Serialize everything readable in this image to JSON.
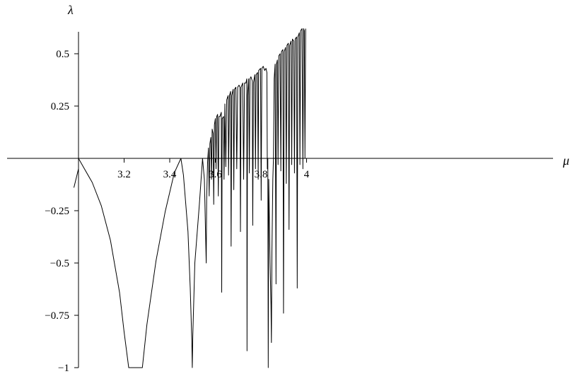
{
  "chart_data": {
    "type": "line",
    "title": "",
    "xlabel": "μ",
    "ylabel": "λ",
    "xlim": [
      2.97,
      4.02
    ],
    "ylim": [
      -1.0,
      0.62
    ],
    "grid": false,
    "legend": "none",
    "x_ticks": [
      {
        "value": 3.2,
        "label": "3.2"
      },
      {
        "value": 3.4,
        "label": "3.4"
      },
      {
        "value": 3.6,
        "label": "3.6"
      },
      {
        "value": 3.8,
        "label": "3.8"
      },
      {
        "value": 4.0,
        "label": "4"
      }
    ],
    "y_ticks": [
      {
        "value": 0.5,
        "label": "0.5"
      },
      {
        "value": 0.25,
        "label": "0.25"
      },
      {
        "value": -0.25,
        "label": "−0.25"
      },
      {
        "value": -0.5,
        "label": "−0.5"
      },
      {
        "value": -0.75,
        "label": "−0.75"
      },
      {
        "value": -1.0,
        "label": "−1"
      }
    ],
    "series": [
      {
        "color": "#000000",
        "points": [
          [
            2.98,
            -0.14
          ],
          [
            3.0,
            -0.05
          ],
          [
            3.0,
            -0.0
          ],
          [
            3.02,
            -0.039
          ],
          [
            3.06,
            -0.115
          ],
          [
            3.1,
            -0.227
          ],
          [
            3.14,
            -0.392
          ],
          [
            3.18,
            -0.642
          ],
          [
            3.2,
            -0.83
          ],
          [
            3.22,
            -1.0
          ],
          [
            3.28,
            -1.0
          ],
          [
            3.3,
            -0.795
          ],
          [
            3.34,
            -0.49
          ],
          [
            3.38,
            -0.256
          ],
          [
            3.42,
            -0.07
          ],
          [
            3.449,
            0.0
          ],
          [
            3.46,
            -0.08
          ],
          [
            3.48,
            -0.35
          ],
          [
            3.49,
            -0.62
          ],
          [
            3.497,
            -0.88
          ],
          [
            3.499,
            -1.0
          ],
          [
            3.501,
            -0.85
          ],
          [
            3.51,
            -0.5
          ],
          [
            3.53,
            -0.22
          ],
          [
            3.544,
            0.0
          ],
          [
            3.552,
            -0.1
          ],
          [
            3.56,
            -0.5
          ],
          [
            3.562,
            -0.2
          ],
          [
            3.566,
            -0.02
          ],
          [
            3.57,
            0.05
          ],
          [
            3.573,
            -0.18
          ],
          [
            3.576,
            0.07
          ],
          [
            3.58,
            0.1
          ],
          [
            3.583,
            -0.1
          ],
          [
            3.586,
            0.14
          ],
          [
            3.59,
            0.12
          ],
          [
            3.593,
            -0.22
          ],
          [
            3.596,
            0.16
          ],
          [
            3.6,
            0.19
          ],
          [
            3.603,
            -0.05
          ],
          [
            3.606,
            0.2
          ],
          [
            3.61,
            0.21
          ],
          [
            3.613,
            -0.18
          ],
          [
            3.616,
            0.2
          ],
          [
            3.62,
            0.2
          ],
          [
            3.626,
            0.22
          ],
          [
            3.628,
            -0.64
          ],
          [
            3.63,
            0.19
          ],
          [
            3.636,
            0.2
          ],
          [
            3.638,
            -0.1
          ],
          [
            3.642,
            0.26
          ],
          [
            3.646,
            -0.04
          ],
          [
            3.65,
            0.28
          ],
          [
            3.656,
            0.3
          ],
          [
            3.658,
            -0.08
          ],
          [
            3.662,
            0.3
          ],
          [
            3.667,
            0.32
          ],
          [
            3.669,
            -0.42
          ],
          [
            3.672,
            0.3
          ],
          [
            3.678,
            0.33
          ],
          [
            3.681,
            -0.15
          ],
          [
            3.684,
            0.33
          ],
          [
            3.69,
            0.34
          ],
          [
            3.694,
            -0.05
          ],
          [
            3.698,
            0.34
          ],
          [
            3.704,
            0.35
          ],
          [
            3.708,
            0.34
          ],
          [
            3.71,
            -0.35
          ],
          [
            3.713,
            0.34
          ],
          [
            3.72,
            0.36
          ],
          [
            3.724,
            -0.1
          ],
          [
            3.728,
            0.36
          ],
          [
            3.734,
            0.36
          ],
          [
            3.738,
            0.38
          ],
          [
            3.739,
            -0.92
          ],
          [
            3.741,
            0.3
          ],
          [
            3.746,
            0.38
          ],
          [
            3.749,
            -0.07
          ],
          [
            3.752,
            0.38
          ],
          [
            3.756,
            0.39
          ],
          [
            3.762,
            0.37
          ],
          [
            3.764,
            -0.32
          ],
          [
            3.767,
            0.36
          ],
          [
            3.773,
            0.4
          ],
          [
            3.776,
            -0.05
          ],
          [
            3.779,
            0.4
          ],
          [
            3.785,
            0.41
          ],
          [
            3.788,
            -0.1
          ],
          [
            3.79,
            0.42
          ],
          [
            3.798,
            0.43
          ],
          [
            3.801,
            -0.2
          ],
          [
            3.804,
            0.43
          ],
          [
            3.81,
            0.44
          ],
          [
            3.816,
            0.42
          ],
          [
            3.822,
            0.43
          ],
          [
            3.826,
            0.41
          ],
          [
            3.828,
            -0.05
          ],
          [
            3.83,
            0.0
          ],
          [
            3.832,
            -1.0
          ],
          [
            3.834,
            -0.1
          ],
          [
            3.84,
            -0.5
          ],
          [
            3.844,
            -0.7
          ],
          [
            3.846,
            -0.88
          ],
          [
            3.848,
            -0.45
          ],
          [
            3.852,
            -0.1
          ],
          [
            3.855,
            0.0
          ],
          [
            3.858,
            0.38
          ],
          [
            3.862,
            0.45
          ],
          [
            3.866,
            -0.6
          ],
          [
            3.868,
            0.45
          ],
          [
            3.872,
            0.47
          ],
          [
            3.875,
            -0.03
          ],
          [
            3.878,
            0.49
          ],
          [
            3.884,
            0.5
          ],
          [
            3.887,
            -0.06
          ],
          [
            3.89,
            0.51
          ],
          [
            3.896,
            0.52
          ],
          [
            3.899,
            -0.74
          ],
          [
            3.902,
            0.51
          ],
          [
            3.908,
            0.53
          ],
          [
            3.911,
            -0.12
          ],
          [
            3.914,
            0.54
          ],
          [
            3.92,
            0.55
          ],
          [
            3.923,
            -0.34
          ],
          [
            3.926,
            0.54
          ],
          [
            3.932,
            0.56
          ],
          [
            3.935,
            -0.03
          ],
          [
            3.938,
            0.57
          ],
          [
            3.944,
            0.56
          ],
          [
            3.947,
            -0.07
          ],
          [
            3.95,
            0.57
          ],
          [
            3.956,
            0.58
          ],
          [
            3.959,
            -0.62
          ],
          [
            3.962,
            0.58
          ],
          [
            3.968,
            0.6
          ],
          [
            3.971,
            -0.03
          ],
          [
            3.974,
            0.61
          ],
          [
            3.98,
            0.62
          ],
          [
            3.984,
            -0.05
          ],
          [
            3.987,
            0.62
          ],
          [
            3.99,
            0.61
          ],
          [
            3.993,
            0.0
          ],
          [
            3.996,
            0.62
          ]
        ]
      }
    ]
  }
}
